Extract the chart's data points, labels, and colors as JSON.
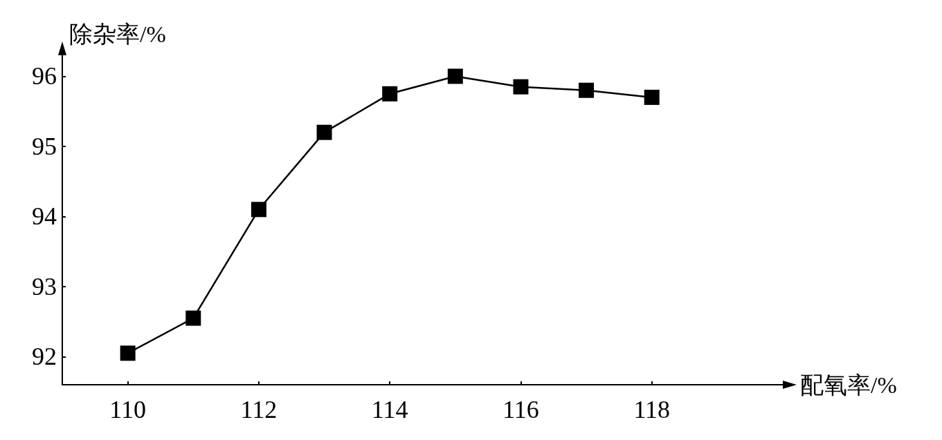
{
  "chart_data": {
    "type": "line",
    "xlabel": "配氧率/%",
    "ylabel": "除杂率/%",
    "x": [
      110,
      111,
      112,
      113,
      114,
      115,
      116,
      117,
      118
    ],
    "series": [
      {
        "color": "#000000",
        "values": [
          92.05,
          92.55,
          94.1,
          95.2,
          95.75,
          96.0,
          95.85,
          95.8,
          95.7
        ]
      }
    ],
    "xlim": [
      109,
      120
    ],
    "xticks": [
      110,
      112,
      114,
      116,
      118
    ],
    "ylim": [
      91.6,
      96.3
    ],
    "yticks": [
      92,
      93,
      94,
      95,
      96
    ],
    "grid": false,
    "marker": "square",
    "line_style": "solid"
  }
}
